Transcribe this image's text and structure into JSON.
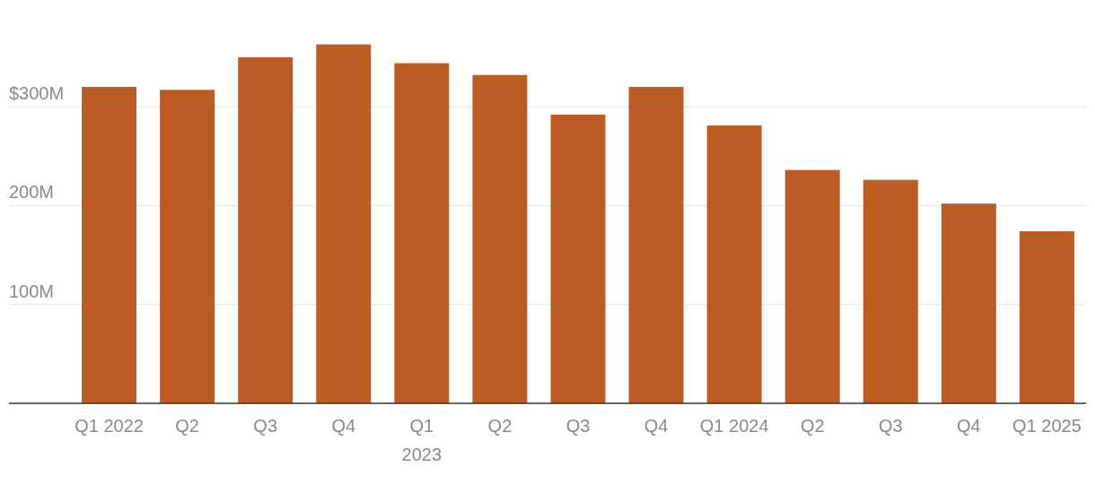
{
  "chart_data": {
    "type": "bar",
    "categories": [
      "Q1 2022",
      "Q2",
      "Q3",
      "Q4",
      "Q1 2023",
      "Q2",
      "Q3",
      "Q4",
      "Q1 2024",
      "Q2",
      "Q3",
      "Q4",
      "Q1 2025"
    ],
    "values": [
      320,
      317,
      350,
      363,
      344,
      332,
      292,
      320,
      281,
      236,
      226,
      202,
      174
    ],
    "color": "#bb5c25",
    "ylim": [
      0,
      368
    ],
    "yticks": [
      {
        "value": 0,
        "label": null
      },
      {
        "value": 100,
        "label": "100M"
      },
      {
        "value": 200,
        "label": "200M"
      },
      {
        "value": 300,
        "label": "$300M"
      }
    ],
    "grid": "y"
  }
}
